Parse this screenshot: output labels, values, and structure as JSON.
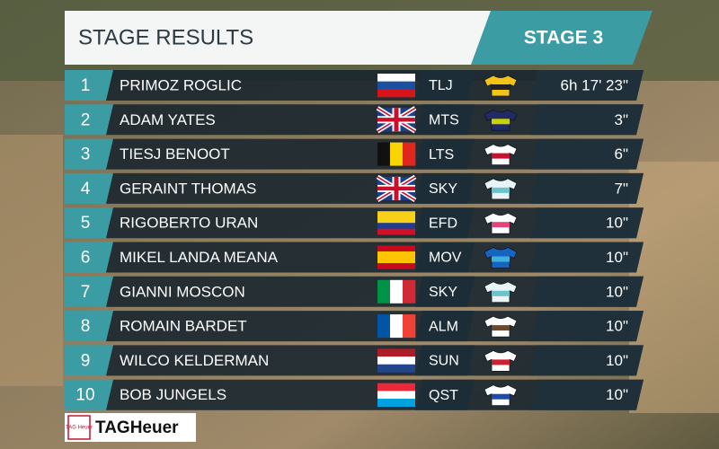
{
  "header": {
    "title": "STAGE RESULTS",
    "stage": "STAGE 3"
  },
  "rows": [
    {
      "rank": "1",
      "name": "PRIMOZ ROGLIC",
      "team": "TLJ",
      "time": "6h 17' 23\""
    },
    {
      "rank": "2",
      "name": "ADAM YATES",
      "team": "MTS",
      "time": "3\""
    },
    {
      "rank": "3",
      "name": "TIESJ BENOOT",
      "team": "LTS",
      "time": "6\""
    },
    {
      "rank": "4",
      "name": "GERAINT THOMAS",
      "team": "SKY",
      "time": "7\""
    },
    {
      "rank": "5",
      "name": "RIGOBERTO URAN",
      "team": "EFD",
      "time": "10\""
    },
    {
      "rank": "6",
      "name": "MIKEL LANDA MEANA",
      "team": "MOV",
      "time": "10\""
    },
    {
      "rank": "7",
      "name": "GIANNI MOSCON",
      "team": "SKY",
      "time": "10\""
    },
    {
      "rank": "8",
      "name": "ROMAIN BARDET",
      "team": "ALM",
      "time": "10\""
    },
    {
      "rank": "9",
      "name": "WILCO KELDERMAN",
      "team": "SUN",
      "time": "10\""
    },
    {
      "rank": "10",
      "name": "BOB JUNGELS",
      "team": "QST",
      "time": "10\""
    }
  ],
  "sponsor": {
    "badge": "TAG Heuer",
    "logo": "TAGHeuer"
  }
}
